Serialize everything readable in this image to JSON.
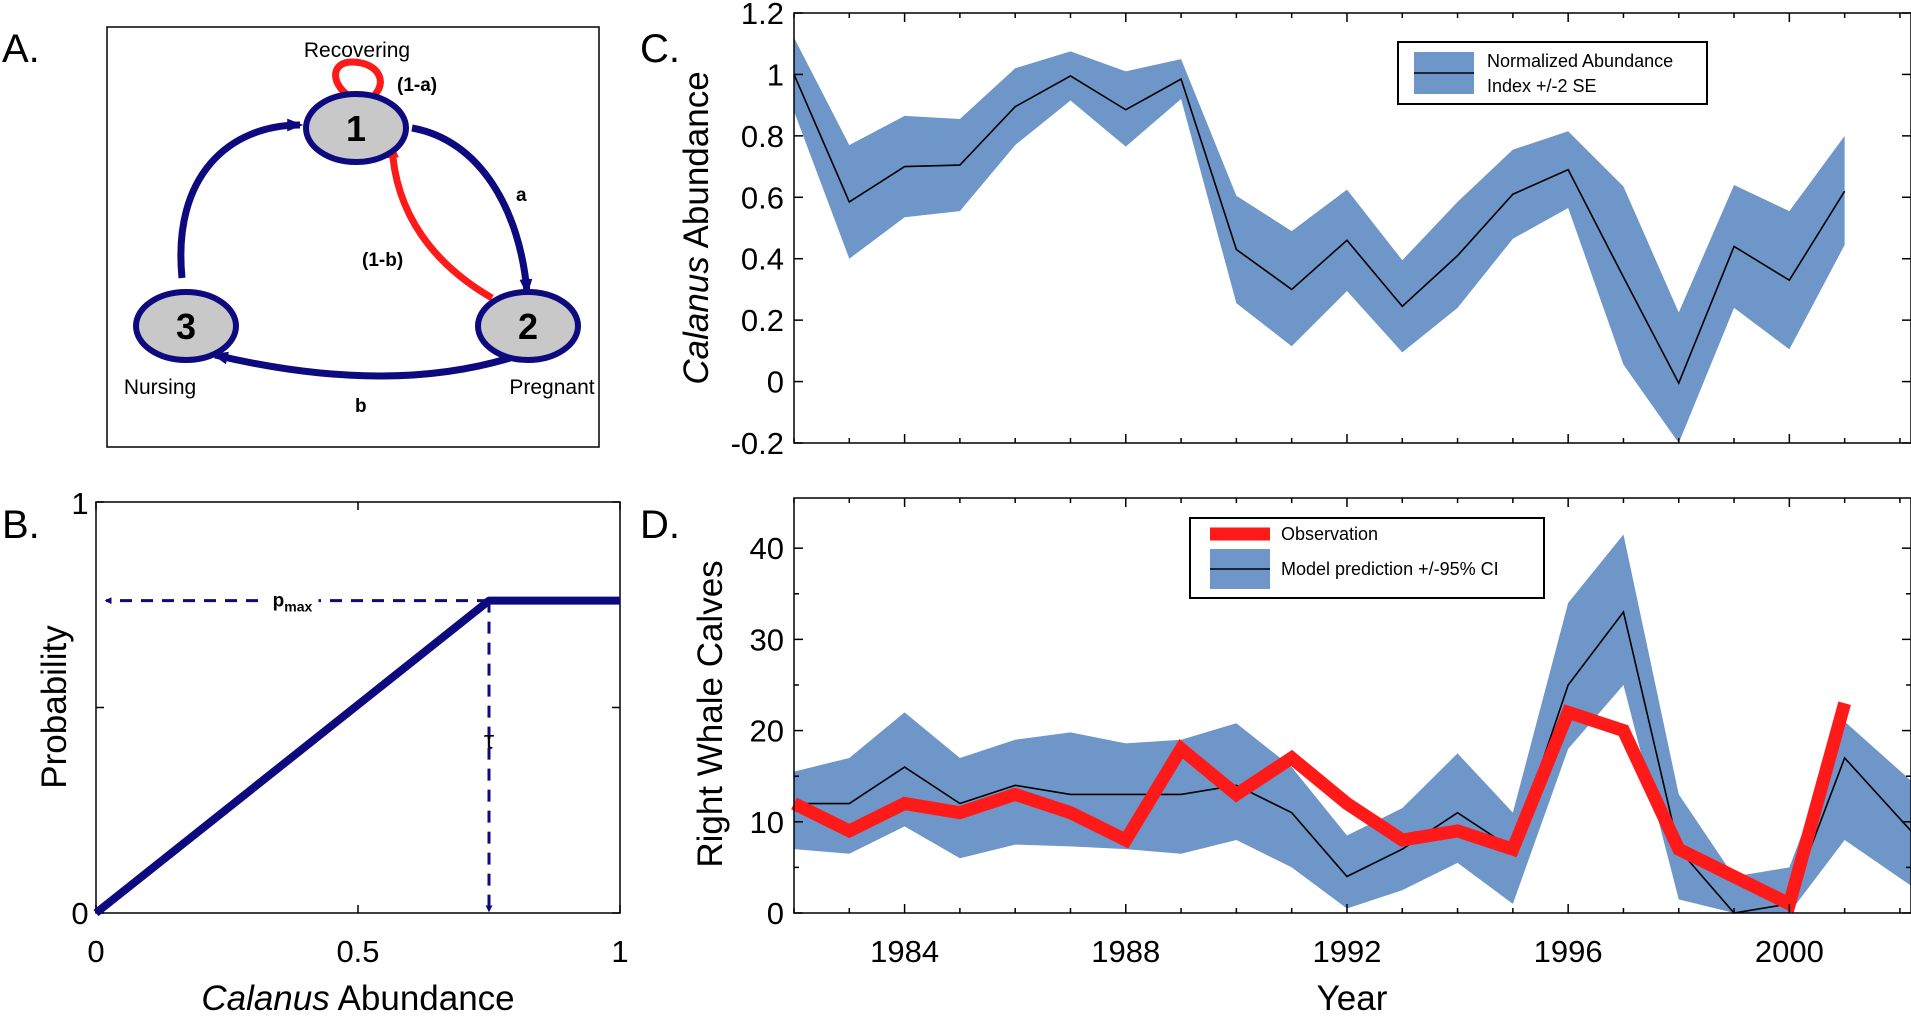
{
  "colors": {
    "navy": "#0d0a80",
    "red": "#ff1a1a",
    "band": "#6e96c8",
    "node_fill": "#c8c8c8"
  },
  "panel_labels": {
    "a": "A.",
    "b": "B.",
    "c": "C.",
    "d": "D."
  },
  "diagram": {
    "states": [
      {
        "number": "1",
        "label": "Recovering"
      },
      {
        "number": "2",
        "label": "Pregnant"
      },
      {
        "number": "3",
        "label": "Nursing"
      }
    ],
    "transitions": {
      "self_loop": "(1-a)",
      "one_to_two": "a",
      "two_to_one": "(1-b)",
      "two_to_three": "b"
    }
  },
  "chart_data": [
    {
      "panel": "B",
      "type": "line",
      "xlabel_italic": "Calanus",
      "xlabel_rest": " Abundance",
      "ylabel": "Probability",
      "xlim": [
        0,
        1
      ],
      "ylim": [
        0,
        1
      ],
      "xticks": [
        "0",
        "0.5",
        "1"
      ],
      "yticks": [
        "0",
        "1"
      ],
      "x": [
        0,
        0.75,
        1
      ],
      "y": [
        0,
        0.76,
        0.76
      ],
      "annotations": {
        "pmax_main": "p",
        "pmax_sub": "max",
        "tau": "τ"
      }
    },
    {
      "panel": "C",
      "type": "area",
      "ylabel_italic": "Calanus",
      "ylabel_rest": " Abundance",
      "xlim": [
        1982,
        2002.2
      ],
      "ylim": [
        -0.2,
        1.2
      ],
      "yticks": [
        "-0.2",
        "0",
        "0.2",
        "0.4",
        "0.6",
        "0.8",
        "1",
        "1.2"
      ],
      "legend": {
        "line1": "Normalized Abundance",
        "line2": "Index +/-2 SE",
        "position": "top-right"
      },
      "x": [
        1982,
        1983,
        1984,
        1985,
        1986,
        1987,
        1988,
        1989,
        1990,
        1991,
        1992,
        1993,
        1994,
        1995,
        1996,
        1997,
        1998,
        1999,
        2000,
        2001
      ],
      "series": [
        {
          "mean": [
            1.0,
            0.585,
            0.7,
            0.705,
            0.895,
            0.995,
            0.885,
            0.985,
            0.43,
            0.3,
            0.46,
            0.245,
            0.41,
            0.61,
            0.69,
            0.34,
            -0.005,
            0.44,
            0.33,
            0.62
          ],
          "upper": [
            1.12,
            0.77,
            0.865,
            0.855,
            1.02,
            1.075,
            1.01,
            1.05,
            0.605,
            0.49,
            0.625,
            0.395,
            0.585,
            0.755,
            0.815,
            0.635,
            0.225,
            0.64,
            0.555,
            0.8
          ],
          "lower": [
            0.88,
            0.4,
            0.535,
            0.555,
            0.77,
            0.915,
            0.765,
            0.92,
            0.255,
            0.115,
            0.295,
            0.095,
            0.24,
            0.465,
            0.565,
            0.055,
            -0.2,
            0.24,
            0.105,
            0.445
          ]
        }
      ]
    },
    {
      "panel": "D",
      "type": "line",
      "xlabel": "Year",
      "ylabel": "Right Whale Calves",
      "xlim": [
        1982,
        2002.2
      ],
      "ylim": [
        0,
        45.5
      ],
      "xticks": [
        "1984",
        "1988",
        "1992",
        "1996",
        "2000"
      ],
      "xtick_values": [
        1984,
        1988,
        1992,
        1996,
        2000
      ],
      "yticks": [
        "0",
        "10",
        "20",
        "30",
        "40"
      ],
      "legend": {
        "observation": "Observation",
        "model": "Model prediction +/-95% CI",
        "position": "top-center"
      },
      "x": [
        1982,
        1983,
        1984,
        1985,
        1986,
        1987,
        1988,
        1989,
        1990,
        1991,
        1992,
        1993,
        1994,
        1995,
        1996,
        1997,
        1998,
        1999,
        2000,
        2001,
        2002.2
      ],
      "series": [
        {
          "name": "Observation",
          "x": [
            1982,
            1983,
            1984,
            1985,
            1986,
            1987,
            1988,
            1989,
            1990,
            1991,
            1992,
            1993,
            1994,
            1995,
            1996,
            1997,
            1998,
            1999,
            2000,
            2001
          ],
          "values": [
            12,
            9,
            12,
            11,
            13,
            11,
            8,
            18,
            13,
            17,
            12,
            8,
            9,
            7,
            22,
            20,
            7,
            4,
            1,
            23
          ]
        },
        {
          "name": "Model prediction +/-95% CI",
          "mean": [
            12,
            12,
            16,
            12,
            14,
            13,
            13,
            13,
            14,
            11,
            4,
            7,
            11,
            7,
            25,
            33,
            7,
            0,
            1,
            17,
            9
          ],
          "upper": [
            15.5,
            17,
            22,
            17,
            19,
            19.8,
            18.6,
            19,
            20.8,
            16,
            8.5,
            11.5,
            17.5,
            11,
            34,
            41.5,
            13,
            4,
            5,
            21,
            14.5
          ],
          "lower": [
            7,
            6.5,
            9.5,
            6,
            7.5,
            7.3,
            7,
            6.5,
            8,
            5,
            0.5,
            2.5,
            5.5,
            1,
            18,
            25,
            1.5,
            0,
            0,
            8,
            3
          ]
        }
      ]
    }
  ]
}
